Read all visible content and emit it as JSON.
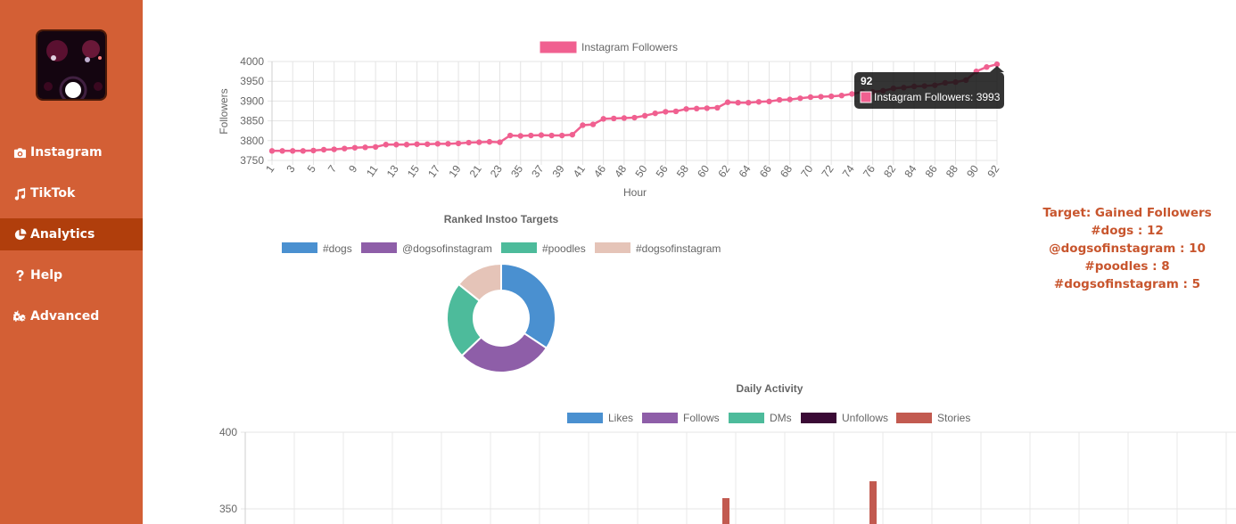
{
  "sidebar": {
    "logo_alt": "avatar",
    "items": [
      {
        "label": "Instagram",
        "icon": "camera-icon",
        "active": false
      },
      {
        "label": "TikTok",
        "icon": "music-note-icon",
        "active": false
      },
      {
        "label": "Analytics",
        "icon": "pie-chart-icon",
        "active": true
      },
      {
        "label": "Help",
        "icon": "question-icon",
        "active": false
      },
      {
        "label": "Advanced",
        "icon": "gears-icon",
        "active": false
      }
    ]
  },
  "colors": {
    "sidebar": "#d35f35",
    "sidebar_active": "#b03e0c",
    "accent_text": "#c8552d",
    "followers_line": "#f06090"
  },
  "targets": {
    "title": "Target: Gained Followers",
    "lines": [
      "#dogs : 12",
      "@dogsofinstagram : 10",
      "#poodles : 8",
      "#dogsofinstagram : 5"
    ]
  },
  "tooltip": {
    "title": "92",
    "label": "Instagram Followers: 3993"
  },
  "chart_data": [
    {
      "type": "line",
      "title": "",
      "xlabel": "Hour",
      "ylabel": "Followers",
      "ylim": [
        3750,
        4000
      ],
      "yticks": [
        3750,
        3800,
        3850,
        3900,
        3950,
        4000
      ],
      "grid": true,
      "legend": "top",
      "series": [
        {
          "name": "Instagram Followers",
          "color": "#f06090",
          "x": [
            "1",
            "2",
            "3",
            "4",
            "5",
            "6",
            "7",
            "8",
            "9",
            "10",
            "11",
            "12",
            "13",
            "14",
            "15",
            "16",
            "17",
            "18",
            "19",
            "20",
            "21",
            "22",
            "23",
            "34",
            "35",
            "36",
            "37",
            "38",
            "39",
            "40",
            "41",
            "45",
            "46",
            "47",
            "48",
            "49",
            "50",
            "55",
            "56",
            "57",
            "58",
            "59",
            "60",
            "61",
            "62",
            "63",
            "64",
            "65",
            "66",
            "67",
            "68",
            "69",
            "70",
            "71",
            "72",
            "73",
            "74",
            "75",
            "76",
            "77",
            "82",
            "83",
            "84",
            "85",
            "86",
            "87",
            "88",
            "89",
            "90",
            "91",
            "92"
          ],
          "values": [
            3774,
            3774,
            3774,
            3774,
            3775,
            3777,
            3778,
            3780,
            3782,
            3783,
            3784,
            3790,
            3790,
            3790,
            3791,
            3791,
            3792,
            3792,
            3793,
            3795,
            3796,
            3797,
            3796,
            3813,
            3812,
            3813,
            3814,
            3813,
            3813,
            3815,
            3839,
            3841,
            3855,
            3856,
            3857,
            3858,
            3863,
            3869,
            3873,
            3874,
            3880,
            3881,
            3882,
            3883,
            3897,
            3896,
            3896,
            3898,
            3899,
            3903,
            3904,
            3907,
            3910,
            3911,
            3912,
            3914,
            3918,
            3923,
            3923,
            3926,
            3932,
            3934,
            3937,
            3938,
            3940,
            3946,
            3948,
            3953,
            3975,
            3986,
            3993
          ]
        }
      ],
      "tick_labels": [
        "1",
        "3",
        "5",
        "7",
        "9",
        "11",
        "13",
        "15",
        "17",
        "19",
        "21",
        "23",
        "35",
        "37",
        "39",
        "41",
        "46",
        "48",
        "50",
        "56",
        "58",
        "60",
        "62",
        "64",
        "66",
        "68",
        "70",
        "72",
        "74",
        "76",
        "82",
        "84",
        "86",
        "88",
        "90",
        "92"
      ]
    },
    {
      "type": "pie",
      "title": "Ranked Instoo Targets",
      "legend": "top",
      "categories": [
        "#dogs",
        "@dogsofinstagram",
        "#poodles",
        "#dogsofinstagram"
      ],
      "values": [
        12,
        10,
        8,
        5
      ],
      "colors": [
        "#4a90d0",
        "#8e5ea8",
        "#4dbb9b",
        "#e5c4b8"
      ]
    },
    {
      "type": "bar",
      "title": "Daily Activity",
      "legend": "top",
      "ylim": [
        300,
        400
      ],
      "yticks": [
        350,
        400
      ],
      "grid": true,
      "series": [
        {
          "name": "Likes",
          "color": "#4a90d0",
          "values": []
        },
        {
          "name": "Follows",
          "color": "#8e5ea8",
          "values": []
        },
        {
          "name": "DMs",
          "color": "#4dbb9b",
          "values": []
        },
        {
          "name": "Unfollows",
          "color": "#3a0a35",
          "values": []
        },
        {
          "name": "Stories",
          "color": "#c25a50",
          "values": [
            357,
            368
          ]
        }
      ]
    }
  ]
}
